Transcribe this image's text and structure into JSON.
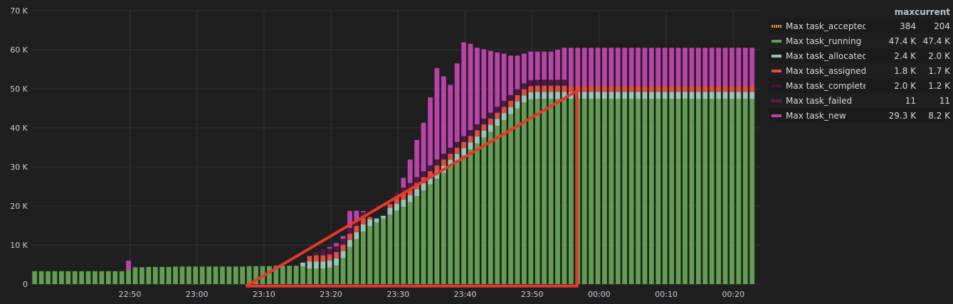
{
  "chart_data": {
    "type": "bar",
    "stacked": true,
    "y_ticks": [
      "0",
      "10 K",
      "20 K",
      "30 K",
      "40 K",
      "50 K",
      "60 K",
      "70 K"
    ],
    "ylim": [
      0,
      70000
    ],
    "grid": true,
    "x_ticks": [
      "22:50",
      "23:00",
      "23:10",
      "23:20",
      "23:30",
      "23:40",
      "23:50",
      "00:00",
      "00:10",
      "00:20"
    ],
    "x_tick_minutes": [
      10,
      20,
      30,
      40,
      50,
      60,
      70,
      80,
      90,
      100
    ],
    "x_range_minutes": [
      -4.7,
      104
    ],
    "bar_interval_minutes": 1,
    "bar_start_minute": -4.2,
    "legend_placement": "right",
    "legend_columns": [
      "max",
      "current"
    ],
    "series": [
      {
        "name": "Max task_accepted",
        "color": "#ef843c",
        "max": "384",
        "current": "204",
        "style": "dotted"
      },
      {
        "name": "Max task_running",
        "color": "#629e51",
        "max": "47.4 K",
        "current": "47.4 K"
      },
      {
        "name": "Max task_allocated",
        "color": "#9ac5b5",
        "max": "2.4 K",
        "current": "2.0 K"
      },
      {
        "name": "Max task_assigned",
        "color": "#e24d42",
        "max": "1.8 K",
        "current": "1.7 K"
      },
      {
        "name": "Max task_complete",
        "color": "#511749",
        "max": "2.0 K",
        "current": "1.2 K",
        "style": "dotted"
      },
      {
        "name": "Max task_failed",
        "color": "#6d1f62",
        "max": "11",
        "current": "11",
        "style": "dotted"
      },
      {
        "name": "Max task_new",
        "color": "#ba43a9",
        "max": "29.3 K",
        "current": "8.2 K"
      }
    ],
    "stack_totals_by_minute": [
      3300,
      3300,
      3300,
      3300,
      3300,
      3300,
      3300,
      3300,
      3300,
      3300,
      3300,
      3300,
      3300,
      3300,
      6000,
      4300,
      4300,
      4400,
      4400,
      4400,
      4400,
      4500,
      4500,
      4500,
      4500,
      4500,
      4500,
      4500,
      4500,
      4500,
      4500,
      4500,
      4600,
      4600,
      4600,
      4600,
      4700,
      4700,
      4700,
      4700,
      5500,
      7200,
      8200,
      8800,
      9500,
      10500,
      12300,
      18700,
      18800,
      18700,
      17200,
      16800,
      17500,
      20500,
      23400,
      27200,
      31900,
      36900,
      41300,
      47800,
      55300,
      53200,
      51000,
      56500,
      61900,
      61500,
      60500,
      60100,
      59700,
      59300,
      59000,
      58500,
      58500,
      59000,
      59500,
      59500,
      59500,
      59500,
      60000,
      60500,
      60500,
      60500,
      60500,
      60500,
      60500,
      60500,
      60500,
      60500,
      60500,
      60500,
      60500,
      60500,
      60500,
      60500,
      60500,
      60500,
      60500,
      60500,
      60500,
      60500,
      60500,
      60500,
      60500,
      60500,
      60500,
      60500,
      60500,
      60500
    ],
    "running_by_minute": [
      3300,
      3300,
      3300,
      3300,
      3300,
      3300,
      3300,
      3300,
      3300,
      3300,
      3300,
      3300,
      3300,
      3300,
      3600,
      4300,
      4300,
      4400,
      4400,
      4400,
      4400,
      4500,
      4500,
      4500,
      4500,
      4500,
      4500,
      4500,
      4500,
      4500,
      4500,
      4500,
      4600,
      4600,
      4600,
      4600,
      4700,
      4700,
      4700,
      4700,
      4500,
      4000,
      4000,
      4000,
      4200,
      4800,
      6700,
      9500,
      11500,
      13500,
      14800,
      15800,
      16800,
      17800,
      18800,
      19800,
      21000,
      22500,
      24000,
      25500,
      27000,
      28500,
      30000,
      31500,
      33000,
      34500,
      36000,
      37500,
      39000,
      40500,
      42000,
      43500,
      45000,
      46500,
      47300,
      47400,
      47400,
      47400,
      47400,
      47400,
      47400,
      47400,
      47400,
      47400,
      47400,
      47400,
      47400,
      47400,
      47400,
      47400,
      47400,
      47400,
      47400,
      47400,
      47400,
      47400,
      47400,
      47400,
      47400,
      47400,
      47400,
      47400,
      47400,
      47400,
      47400,
      47400,
      47400,
      47400
    ],
    "annotation": {
      "color": "#e8372a",
      "points_minutes_values": [
        [
          27.3,
          -500
        ],
        [
          76.7,
          49500
        ],
        [
          76.7,
          -500
        ],
        [
          27.3,
          -500
        ]
      ]
    }
  }
}
